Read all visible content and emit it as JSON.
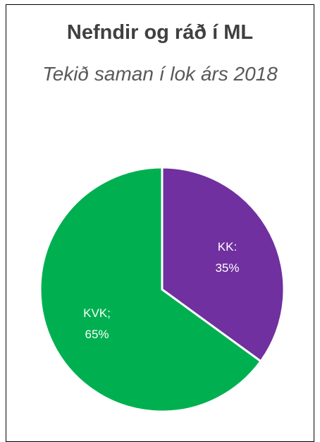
{
  "chart_data": {
    "type": "pie",
    "title": "Nefndir og ráð í ML",
    "subtitle": "Tekið saman í lok árs 2018",
    "categories": [
      "KK:",
      "KVK;"
    ],
    "values": [
      35,
      65
    ],
    "value_labels": [
      "35%",
      "65%"
    ],
    "colors": [
      "#7030a0",
      "#00b050"
    ]
  }
}
